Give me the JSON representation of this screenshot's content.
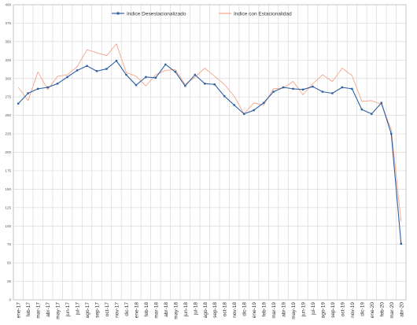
{
  "chart_data": {
    "type": "line",
    "title": "",
    "xlabel": "",
    "ylabel": "",
    "ylim": [
      0,
      400
    ],
    "ytick_step": 25,
    "grid": true,
    "legend_position": "top",
    "categories": [
      "ene-17",
      "feb-17",
      "mar-17",
      "abr-17",
      "may-17",
      "jun-17",
      "jul-17",
      "ago-17",
      "sep-17",
      "oct-17",
      "nov-17",
      "dic-17",
      "ene-18",
      "feb-18",
      "mar-18",
      "abr-18",
      "may-18",
      "jun-18",
      "jul-18",
      "ago-18",
      "sep-18",
      "oct-18",
      "nov-18",
      "dic-18",
      "ene-19",
      "feb-19",
      "mar-19",
      "abr-19",
      "may-19",
      "jun-19",
      "jul-19",
      "ago-19",
      "sep-19",
      "oct-19",
      "nov-19",
      "dic-19",
      "ene-20",
      "feb-20",
      "mar-20",
      "abr-20"
    ],
    "x_tick_labels": [
      "ene-17",
      "feb-17",
      "mar-17",
      "abr-17",
      "may-17",
      "jun-17",
      "jul-17",
      "ago-17",
      "sep-17",
      "oct-17",
      "nov-17",
      "dic-17",
      "ene-18",
      "feb-18",
      "mar-18",
      "abr-18",
      "may-18",
      "jun-18",
      "jul-18",
      "ago-18",
      "sep-18",
      "oct-18",
      "nov-18",
      "dic-18",
      "ene-19",
      "feb-19",
      "mar-19",
      "abr-19",
      "may-19",
      "jun-19",
      "jul-19",
      "ago-19",
      "sep-19",
      "oct-19",
      "nov-19",
      "dic-19",
      "ene-20",
      "feb-20",
      "mar-20",
      "abr-20"
    ],
    "y_tick_labels": [
      "0",
      "25",
      "50",
      "75",
      "100",
      "125",
      "150",
      "175",
      "200",
      "225",
      "250",
      "275",
      "300",
      "325",
      "350",
      "375",
      "400"
    ],
    "series": [
      {
        "name": "Indice Desestacionalizado",
        "color": "#2e5fa3",
        "marker": true,
        "values": [
          266,
          280,
          286,
          288,
          293,
          302,
          311,
          317,
          310,
          313,
          324,
          305,
          291,
          302,
          301,
          319,
          309,
          290,
          305,
          293,
          292,
          276,
          264,
          252,
          257,
          267,
          282,
          288,
          286,
          285,
          289,
          282,
          280,
          288,
          286,
          258,
          252,
          267,
          225,
          76
        ]
      },
      {
        "name": "Indice con Estacionalidad",
        "color": "#f4a58a",
        "marker": false,
        "values": [
          288,
          270,
          309,
          285,
          303,
          305,
          316,
          339,
          335,
          331,
          347,
          308,
          303,
          290,
          305,
          311,
          312,
          292,
          302,
          314,
          303,
          292,
          276,
          252,
          267,
          264,
          286,
          287,
          296,
          278,
          293,
          305,
          296,
          314,
          304,
          269,
          270,
          265,
          231,
          106
        ]
      }
    ]
  }
}
